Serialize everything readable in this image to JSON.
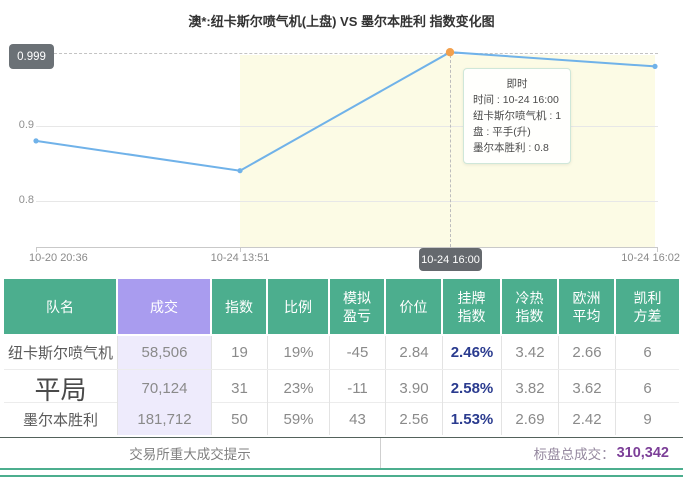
{
  "title": "澳*:纽卡斯尔喷气机(上盘) VS 墨尔本胜利 指数变化图",
  "chart": {
    "y_max_label": "0.999",
    "y_labels": [
      "0.9",
      "0.8"
    ],
    "x_labels": [
      "10-20 20:36",
      "10-24 13:51",
      "10-24 16:00",
      "10-24 16:02"
    ],
    "tooltip": {
      "title": "即时",
      "lines": [
        "时间 : 10-24 16:00",
        "纽卡斯尔喷气机 : 1",
        "盘 : 平手(升)",
        "墨尔本胜利 : 0.8"
      ]
    }
  },
  "chart_data": {
    "type": "line",
    "title": "澳*:纽卡斯尔喷气机(上盘) VS 墨尔本胜利 指数变化图",
    "x": [
      "10-20 20:36",
      "10-24 13:51",
      "10-24 16:00",
      "10-24 16:02"
    ],
    "series": [
      {
        "name": "纽卡斯尔喷气机(上盘) 指数",
        "values": [
          0.88,
          0.84,
          0.999,
          0.98
        ]
      }
    ],
    "yticks": [
      0.8,
      0.9,
      0.999
    ],
    "ylim": [
      0.75,
      1.02
    ],
    "grid": true,
    "legend": false,
    "highlight_index": 2,
    "highlight_region_x": [
      "10-24 13:51",
      "10-24 16:02"
    ]
  },
  "table": {
    "columns": [
      "队名",
      "成交",
      "指数",
      "比例",
      "模拟\n盈亏",
      "价位",
      "挂牌\n指数",
      "冷热\n指数",
      "欧洲\n平均",
      "凯利\n方差"
    ],
    "rows": [
      {
        "team": "纽卡斯尔喷气机",
        "volume": "58,506",
        "index": "19",
        "ratio": "19%",
        "sim_pl": "-45",
        "price": "2.84",
        "listed": "2.46%",
        "hot": "3.42",
        "euro_avg": "2.66",
        "kelly": "6"
      },
      {
        "team": "平局",
        "volume": "70,124",
        "index": "31",
        "ratio": "23%",
        "sim_pl": "-11",
        "price": "3.90",
        "listed": "2.58%",
        "hot": "3.82",
        "euro_avg": "3.62",
        "kelly": "6"
      },
      {
        "team": "墨尔本胜利",
        "volume": "181,712",
        "index": "50",
        "ratio": "59%",
        "sim_pl": "43",
        "price": "2.56",
        "listed": "1.53%",
        "hot": "2.69",
        "euro_avg": "2.42",
        "kelly": "9"
      }
    ]
  },
  "footer": {
    "notice": "交易所重大成交提示",
    "total_label": "标盘总成交：",
    "total_value": "310,342"
  },
  "colors": {
    "header_green": "#4cae8e",
    "header_purple": "#a99cef",
    "volume_cell_purple": "#eeebfc",
    "line_blue": "#70b2e9",
    "point_orange": "#f2a04d",
    "listed_navy": "#2a3b8f",
    "total_purple": "#7c3f98",
    "region_yellow": "#fcfbe5",
    "badge_gray": "#6b7176"
  }
}
